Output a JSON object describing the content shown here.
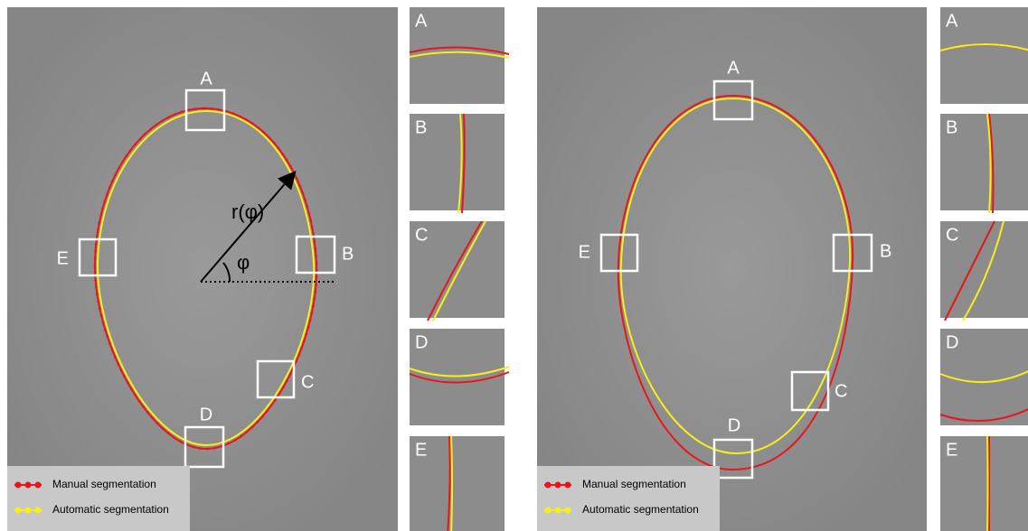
{
  "panels": [
    {
      "boxes": [
        "A",
        "B",
        "C",
        "D",
        "E"
      ],
      "insets": [
        "A",
        "B",
        "C",
        "D",
        "E"
      ],
      "radius_label": "r(φ)",
      "angle_label": "φ",
      "legend": {
        "manual": "Manual segmentation",
        "automatic": "Automatic segmentation"
      }
    },
    {
      "boxes": [
        "A",
        "B",
        "C",
        "D",
        "E"
      ],
      "insets": [
        "A",
        "B",
        "C",
        "D",
        "E"
      ],
      "legend": {
        "manual": "Manual segmentation",
        "automatic": "Automatic segmentation"
      }
    }
  ]
}
